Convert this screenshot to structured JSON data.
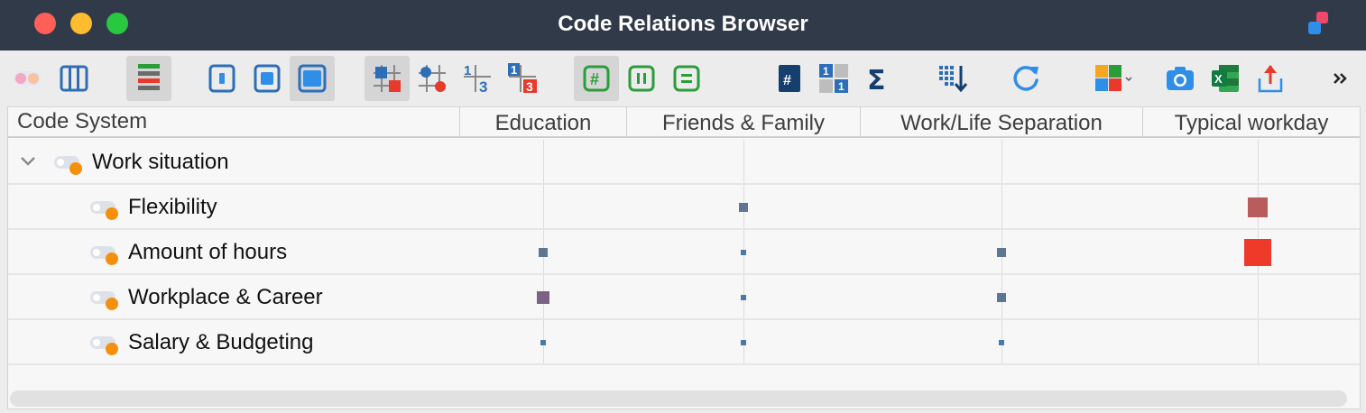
{
  "window": {
    "title": "Code Relations Browser"
  },
  "toolbar": {
    "icons": [
      "code-color-icon",
      "columns-icon",
      "sort-bars-icon",
      "small-square-icon",
      "medium-square-icon",
      "large-square-icon",
      "squares-view-icon",
      "circles-view-icon",
      "numbers-view-icon",
      "numbers-colored-view-icon",
      "hash-icon",
      "pause-icon",
      "equals-icon",
      "number-badge-icon",
      "counts-grid-icon",
      "sigma-icon",
      "sort-down-icon",
      "refresh-icon",
      "puzzle-icon",
      "camera-icon",
      "excel-icon",
      "export-icon",
      "more-icon"
    ]
  },
  "table": {
    "header_first": "Code System",
    "columns": [
      "Education",
      "Friends & Family",
      "Work/Life Separation",
      "Typical workday"
    ],
    "rows": [
      {
        "label": "Work situation",
        "level": 0,
        "expanded": true
      },
      {
        "label": "Flexibility",
        "level": 1
      },
      {
        "label": "Amount of hours",
        "level": 1
      },
      {
        "label": "Workplace & Career",
        "level": 1
      },
      {
        "label": "Salary & Budgeting",
        "level": 1
      }
    ],
    "matrix": [
      [
        null,
        null,
        null,
        null
      ],
      [
        null,
        {
          "size": 2,
          "color": "#5f7594"
        },
        null,
        {
          "size": 4,
          "color": "#b85c5c"
        }
      ],
      [
        {
          "size": 2,
          "color": "#5f7594"
        },
        {
          "size": 1,
          "color": "#4a7aa6"
        },
        {
          "size": 2,
          "color": "#5f7594"
        },
        {
          "size": 5,
          "color": "#ef3a2a"
        }
      ],
      [
        {
          "size": 3,
          "color": "#7a6284"
        },
        {
          "size": 1,
          "color": "#4a7aa6"
        },
        {
          "size": 2,
          "color": "#5f7594"
        },
        null
      ],
      [
        {
          "size": 1,
          "color": "#4a7aa6"
        },
        {
          "size": 1,
          "color": "#4a7aa6"
        },
        {
          "size": 1,
          "color": "#4a7aa6"
        },
        null
      ]
    ]
  },
  "colors": {
    "code_dot": "#f5900d",
    "titlebar": "#313a48"
  }
}
